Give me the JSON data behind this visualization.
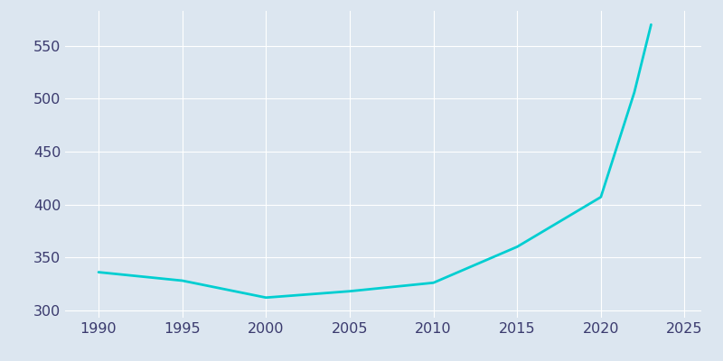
{
  "years": [
    1990,
    1995,
    2000,
    2005,
    2010,
    2015,
    2020,
    2022,
    2023
  ],
  "population": [
    336,
    328,
    312,
    318,
    326,
    360,
    407,
    506,
    570
  ],
  "line_color": "#00CED1",
  "line_width": 2.0,
  "background_color": "#dce6f0",
  "plot_bg_color": "#dce6f0",
  "grid_color": "#ffffff",
  "tick_color": "#3a3a6e",
  "xlim": [
    1988,
    2026
  ],
  "ylim": [
    293,
    583
  ],
  "xticks": [
    1990,
    1995,
    2000,
    2005,
    2010,
    2015,
    2020,
    2025
  ],
  "yticks": [
    300,
    350,
    400,
    450,
    500,
    550
  ],
  "tick_labelsize": 11.5
}
